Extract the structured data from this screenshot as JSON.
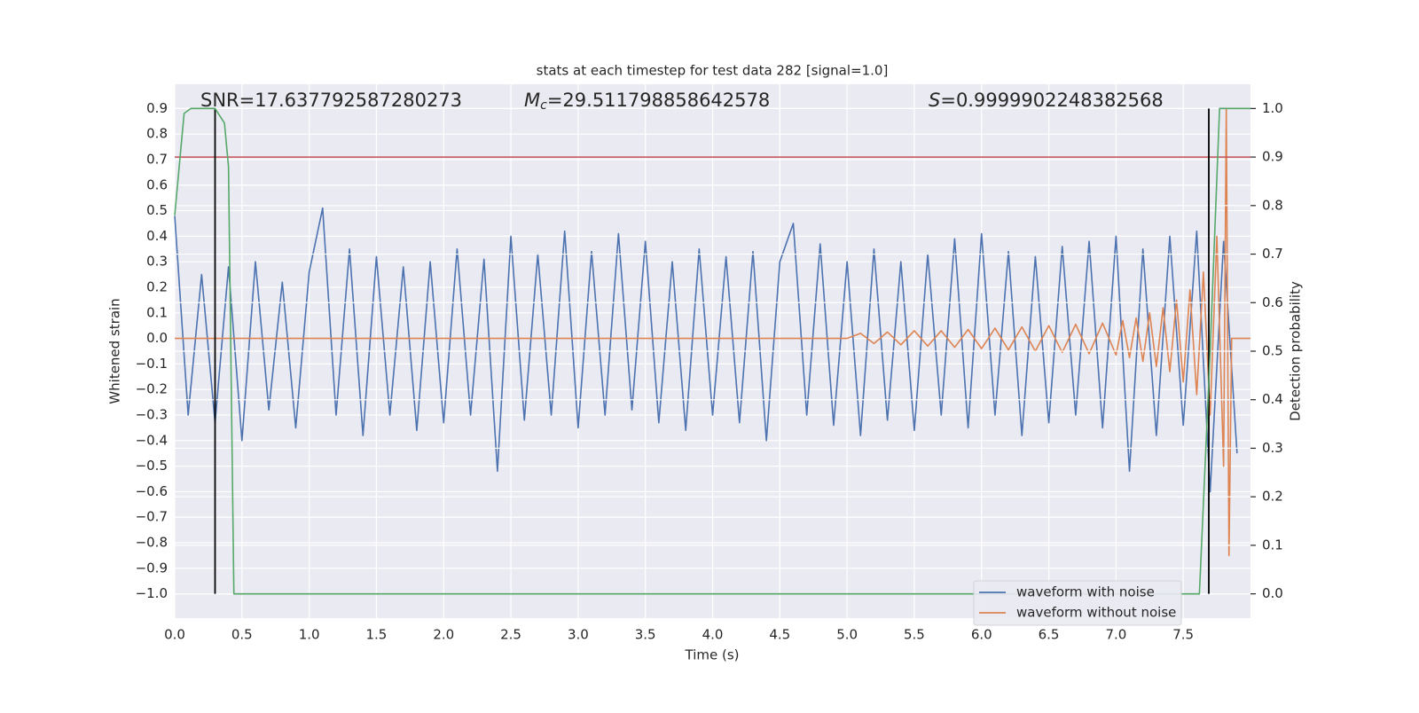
{
  "chart_data": {
    "type": "line",
    "title": "stats at each timestep for test data 282 [signal=1.0]",
    "xlabel": "Time (s)",
    "ylabel": "Whitened strain",
    "y2label": "Detection probability",
    "annotations": {
      "snr": "SNR=17.637792587280273",
      "mc_symbol": "M",
      "mc_sub": "c",
      "mc": "=29.511798858642578",
      "s_symbol": "S",
      "s": "=0.9999902248382568"
    },
    "xlim": [
      0,
      8
    ],
    "ylim": [
      -1.095,
      0.995
    ],
    "y2lim": [
      -0.05,
      1.05
    ],
    "grid": true,
    "legend": "lower right",
    "xticks": [
      {
        "value": 0,
        "label": "0.0"
      },
      {
        "value": 0.5,
        "label": "0.5"
      },
      {
        "value": 1,
        "label": "1.0"
      },
      {
        "value": 1.5,
        "label": "1.5"
      },
      {
        "value": 2,
        "label": "2.0"
      },
      {
        "value": 2.5,
        "label": "2.5"
      },
      {
        "value": 3,
        "label": "3.0"
      },
      {
        "value": 3.5,
        "label": "3.5"
      },
      {
        "value": 4,
        "label": "4.0"
      },
      {
        "value": 4.5,
        "label": "4.5"
      },
      {
        "value": 5,
        "label": "5.0"
      },
      {
        "value": 5.5,
        "label": "5.5"
      },
      {
        "value": 6,
        "label": "6.0"
      },
      {
        "value": 6.5,
        "label": "6.5"
      },
      {
        "value": 7,
        "label": "7.0"
      },
      {
        "value": 7.5,
        "label": "7.5"
      }
    ],
    "yticks": [
      {
        "value": 0.9,
        "label": "0.9"
      },
      {
        "value": 0.8,
        "label": "0.8"
      },
      {
        "value": 0.7,
        "label": "0.7"
      },
      {
        "value": 0.6,
        "label": "0.6"
      },
      {
        "value": 0.5,
        "label": "0.5"
      },
      {
        "value": 0.4,
        "label": "0.4"
      },
      {
        "value": 0.3,
        "label": "0.3"
      },
      {
        "value": 0.2,
        "label": "0.2"
      },
      {
        "value": 0.1,
        "label": "0.1"
      },
      {
        "value": 0,
        "label": "0.0"
      },
      {
        "value": -0.1,
        "label": "−0.1"
      },
      {
        "value": -0.2,
        "label": "−0.2"
      },
      {
        "value": -0.3,
        "label": "−0.3"
      },
      {
        "value": -0.4,
        "label": "−0.4"
      },
      {
        "value": -0.5,
        "label": "−0.5"
      },
      {
        "value": -0.6,
        "label": "−0.6"
      },
      {
        "value": -0.7,
        "label": "−0.7"
      },
      {
        "value": -0.8,
        "label": "−0.8"
      },
      {
        "value": -0.9,
        "label": "−0.9"
      },
      {
        "value": -1,
        "label": "−1.0"
      }
    ],
    "y2ticks": [
      {
        "value": 0,
        "label": "0.0"
      },
      {
        "value": 0.1,
        "label": "0.1"
      },
      {
        "value": 0.2,
        "label": "0.2"
      },
      {
        "value": 0.3,
        "label": "0.3"
      },
      {
        "value": 0.4,
        "label": "0.4"
      },
      {
        "value": 0.5,
        "label": "0.5"
      },
      {
        "value": 0.6,
        "label": "0.6"
      },
      {
        "value": 0.7,
        "label": "0.7"
      },
      {
        "value": 0.8,
        "label": "0.8"
      },
      {
        "value": 0.9,
        "label": "0.9"
      },
      {
        "value": 1,
        "label": "1.0"
      }
    ],
    "series": [
      {
        "name": "waveform with noise",
        "color": "#4c72b0",
        "x": [
          0.0,
          0.1,
          0.2,
          0.3,
          0.4,
          0.5,
          0.6,
          0.7,
          0.8,
          0.9,
          1.0,
          1.1,
          1.2,
          1.3,
          1.4,
          1.5,
          1.6,
          1.7,
          1.8,
          1.9,
          2.0,
          2.1,
          2.2,
          2.3,
          2.4,
          2.5,
          2.6,
          2.7,
          2.8,
          2.9,
          3.0,
          3.1,
          3.2,
          3.3,
          3.4,
          3.5,
          3.6,
          3.7,
          3.8,
          3.9,
          4.0,
          4.1,
          4.2,
          4.3,
          4.4,
          4.5,
          4.6,
          4.7,
          4.8,
          4.9,
          5.0,
          5.1,
          5.2,
          5.3,
          5.4,
          5.5,
          5.6,
          5.7,
          5.8,
          5.9,
          6.0,
          6.1,
          6.2,
          6.3,
          6.4,
          6.5,
          6.6,
          6.7,
          6.8,
          6.9,
          7.0,
          7.1,
          7.2,
          7.3,
          7.4,
          7.5,
          7.6,
          7.7,
          7.8,
          7.9
        ],
        "values": [
          0.48,
          -0.3,
          0.25,
          -0.33,
          0.28,
          -0.4,
          0.3,
          -0.28,
          0.22,
          -0.35,
          0.26,
          0.51,
          -0.3,
          0.35,
          -0.38,
          0.32,
          -0.3,
          0.28,
          -0.36,
          0.3,
          -0.33,
          0.35,
          -0.3,
          0.31,
          -0.52,
          0.4,
          -0.32,
          0.33,
          -0.3,
          0.42,
          -0.35,
          0.34,
          -0.3,
          0.41,
          -0.28,
          0.38,
          -0.33,
          0.3,
          -0.36,
          0.35,
          -0.3,
          0.32,
          -0.33,
          0.34,
          -0.4,
          0.3,
          0.45,
          -0.3,
          0.37,
          -0.34,
          0.3,
          -0.38,
          0.35,
          -0.32,
          0.3,
          -0.36,
          0.33,
          -0.3,
          0.39,
          -0.35,
          0.41,
          -0.3,
          0.34,
          -0.38,
          0.32,
          -0.33,
          0.36,
          -0.3,
          0.38,
          -0.35,
          0.4,
          -0.52,
          0.35,
          -0.38,
          0.4,
          -0.34,
          0.42,
          -0.6,
          0.38,
          -0.45
        ]
      },
      {
        "name": "waveform without noise",
        "color": "#dd8452",
        "x": [
          0.0,
          5.0,
          5.1,
          5.2,
          5.3,
          5.4,
          5.5,
          5.6,
          5.7,
          5.8,
          5.9,
          6.0,
          6.1,
          6.2,
          6.3,
          6.4,
          6.5,
          6.6,
          6.7,
          6.8,
          6.9,
          7.0,
          7.05,
          7.1,
          7.15,
          7.2,
          7.25,
          7.3,
          7.35,
          7.4,
          7.45,
          7.5,
          7.55,
          7.6,
          7.65,
          7.7,
          7.75,
          7.8,
          7.82,
          7.84,
          7.86,
          8.0
        ],
        "values": [
          0.0,
          0.0,
          0.02,
          -0.02,
          0.025,
          -0.025,
          0.03,
          -0.03,
          0.03,
          -0.035,
          0.035,
          -0.04,
          0.04,
          -0.045,
          0.045,
          -0.05,
          0.05,
          -0.055,
          0.055,
          -0.06,
          0.06,
          -0.065,
          0.07,
          -0.075,
          0.08,
          -0.09,
          0.1,
          -0.11,
          0.12,
          -0.13,
          0.15,
          -0.17,
          0.19,
          -0.22,
          0.26,
          -0.3,
          0.4,
          -0.5,
          0.9,
          -0.85,
          0.0,
          0.0
        ]
      },
      {
        "color": "#55a868",
        "axis": "y2",
        "x": [
          0.0,
          0.07,
          0.12,
          0.3,
          0.37,
          0.4,
          0.44,
          7.62,
          7.7,
          7.77,
          8.0
        ],
        "values": [
          0.78,
          0.99,
          1.0,
          1.0,
          0.97,
          0.88,
          0.0,
          0.0,
          0.5,
          1.0,
          1.0
        ]
      }
    ],
    "hline": {
      "axis": "y2",
      "y": 0.9,
      "color": "#c44e52"
    },
    "vlines": {
      "x": [
        0.3,
        7.69
      ],
      "y2range": [
        0,
        1
      ],
      "color": "#000000"
    }
  }
}
